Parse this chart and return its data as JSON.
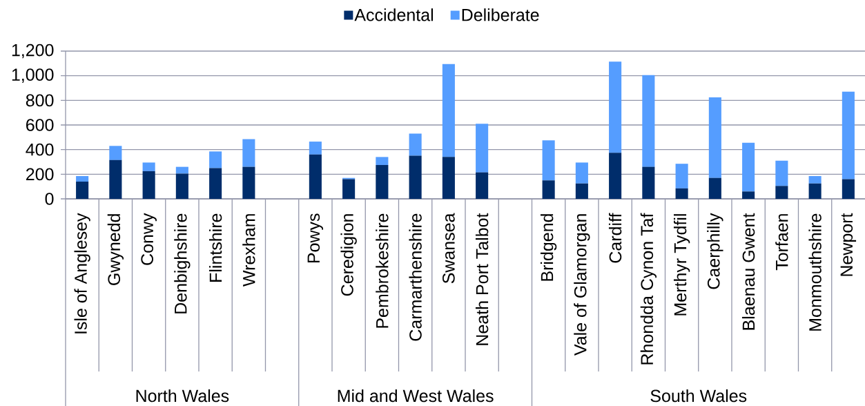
{
  "chart_data": {
    "type": "bar",
    "stacked": true,
    "legend": "top",
    "grid": "y",
    "categories": [
      "Isle of Anglesey",
      "Gwynedd",
      "Conwy",
      "Denbighshire",
      "Flintshire",
      "Wrexham",
      null,
      "Powys",
      "Ceredigion",
      "Pembrokeshire",
      "Carmarthenshire",
      "Swansea",
      "Neath Port Talbot",
      null,
      "Bridgend",
      "Vale of Glamorgan",
      "Cardiff",
      "Rhondda Cynon Taf",
      "Merthyr Tydfil",
      "Caerphilly",
      "Blaenau Gwent",
      "Torfaen",
      "Monmouthshire",
      "Newport"
    ],
    "series": [
      {
        "name": "Accidental",
        "color": "#002d6b",
        "values": [
          140,
          315,
          225,
          205,
          250,
          260,
          null,
          360,
          160,
          275,
          350,
          340,
          215,
          null,
          150,
          125,
          375,
          260,
          85,
          170,
          60,
          105,
          125,
          160
        ]
      },
      {
        "name": "Deliberate",
        "color": "#559dff",
        "values": [
          45,
          115,
          70,
          55,
          135,
          225,
          null,
          105,
          10,
          65,
          180,
          755,
          395,
          null,
          325,
          170,
          740,
          745,
          200,
          655,
          395,
          205,
          60,
          710
        ]
      }
    ],
    "ylim": [
      0,
      1200
    ],
    "yticks": [
      0,
      200,
      400,
      600,
      800,
      {
        "value": 1000,
        "label": "1,000"
      },
      {
        "value": 1200,
        "label": "1,200"
      }
    ],
    "annotations": [
      "North Wales",
      "Mid and West Wales",
      "South Wales"
    ]
  }
}
